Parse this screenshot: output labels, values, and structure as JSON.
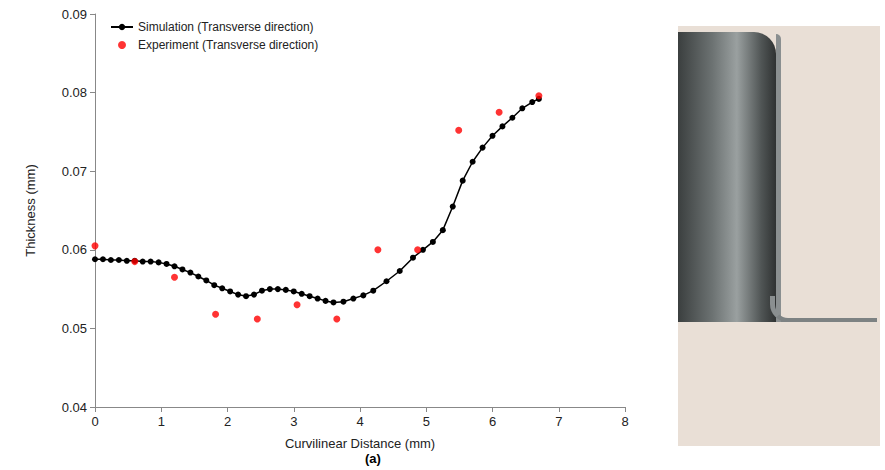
{
  "chart_data": {
    "type": "line",
    "caption": "(a)",
    "x_label": "Curvilinear Distance (mm)",
    "y_label": "Thickness (mm)",
    "xlim": [
      0,
      8
    ],
    "xticks": [
      0,
      1,
      2,
      3,
      4,
      5,
      6,
      7,
      8
    ],
    "ylim": [
      0.04,
      0.09
    ],
    "yticks": [
      0.04,
      0.05,
      0.06,
      0.07,
      0.08,
      0.09
    ],
    "grid": false,
    "legend": "upper left",
    "series": [
      {
        "name": "Simulation (Transverse direction)",
        "type": "line",
        "color": "#000000",
        "marker": "circle",
        "line_style": "solid",
        "x": [
          0,
          0.12,
          0.24,
          0.36,
          0.48,
          0.6,
          0.72,
          0.84,
          0.96,
          1.08,
          1.2,
          1.32,
          1.44,
          1.56,
          1.68,
          1.8,
          1.92,
          2.04,
          2.16,
          2.28,
          2.4,
          2.52,
          2.64,
          2.76,
          2.88,
          3.0,
          3.12,
          3.24,
          3.36,
          3.48,
          3.6,
          3.75,
          3.9,
          4.05,
          4.2,
          4.4,
          4.6,
          4.8,
          4.95,
          5.1,
          5.25,
          5.4,
          5.55,
          5.7,
          5.85,
          6.0,
          6.15,
          6.3,
          6.45,
          6.6,
          6.7
        ],
        "values": [
          0.0588,
          0.0588,
          0.0587,
          0.0587,
          0.0586,
          0.0586,
          0.0585,
          0.0585,
          0.0584,
          0.0582,
          0.0579,
          0.0575,
          0.0571,
          0.0566,
          0.0561,
          0.0555,
          0.0551,
          0.0547,
          0.0543,
          0.0541,
          0.0543,
          0.0548,
          0.055,
          0.055,
          0.0549,
          0.0547,
          0.0544,
          0.0541,
          0.0538,
          0.0535,
          0.0533,
          0.0534,
          0.0538,
          0.0542,
          0.0548,
          0.056,
          0.0573,
          0.059,
          0.06,
          0.061,
          0.0625,
          0.0655,
          0.0688,
          0.0712,
          0.073,
          0.0745,
          0.0757,
          0.0768,
          0.078,
          0.0788,
          0.0792
        ]
      },
      {
        "name": "Experiment (Transverse direction)",
        "type": "scatter",
        "color": "#ff0000",
        "marker": "circle",
        "x": [
          0,
          0.6,
          1.2,
          1.82,
          2.45,
          3.05,
          3.65,
          4.27,
          4.87,
          5.49,
          6.1,
          6.7
        ],
        "values": [
          0.0605,
          0.0585,
          0.0565,
          0.0518,
          0.0512,
          0.053,
          0.0512,
          0.06,
          0.06,
          0.0752,
          0.0775,
          0.0796
        ]
      }
    ]
  }
}
